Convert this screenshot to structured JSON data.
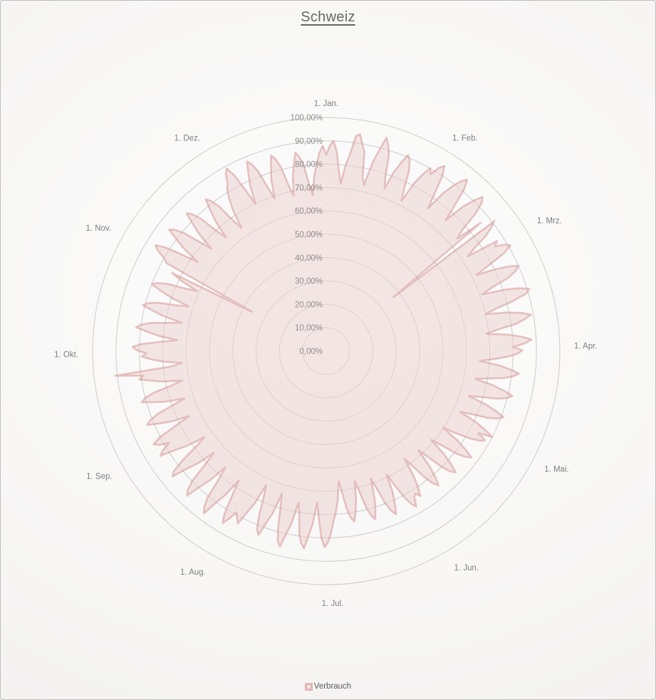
{
  "window": {
    "title": "Schweiz"
  },
  "legend": {
    "label": "Verbrauch"
  },
  "chart_data": {
    "type": "radar",
    "variant": "filled-radar-daily",
    "title": "Schweiz",
    "days_in_year": 365,
    "radial_axis": {
      "min": 0,
      "max": 100,
      "step": 10,
      "unit": "%",
      "tick_labels": [
        "0,00%",
        "10,00%",
        "20,00%",
        "30,00%",
        "40,00%",
        "50,00%",
        "60,00%",
        "70,00%",
        "80,00%",
        "90,00%",
        "100,00%"
      ]
    },
    "categories": [
      {
        "label": "1. Jan.",
        "start_day": 0
      },
      {
        "label": "1. Feb.",
        "start_day": 31
      },
      {
        "label": "1. Mrz.",
        "start_day": 59
      },
      {
        "label": "1. Apr.",
        "start_day": 90
      },
      {
        "label": "1. Mai.",
        "start_day": 120
      },
      {
        "label": "1. Jun.",
        "start_day": 151
      },
      {
        "label": "1. Jul.",
        "start_day": 181
      },
      {
        "label": "1. Aug.",
        "start_day": 212
      },
      {
        "label": "1. Sep.",
        "start_day": 243
      },
      {
        "label": "1. Okt.",
        "start_day": 273
      },
      {
        "label": "1. Nov.",
        "start_day": 304
      },
      {
        "label": "1. Dez.",
        "start_day": 334
      }
    ],
    "legend": {
      "position": "bottom",
      "entries": [
        "Verbrauch"
      ]
    },
    "series": [
      {
        "name": "Verbrauch",
        "values": [
          84,
          88,
          90,
          86,
          78,
          72,
          80,
          85,
          93,
          94,
          90,
          87,
          76,
          73,
          83,
          89,
          95,
          92,
          88,
          79,
          74,
          82,
          87,
          91,
          89,
          85,
          77,
          72,
          81,
          86,
          90,
          88,
          92,
          94,
          90,
          82,
          75,
          84,
          89,
          93,
          95,
          91,
          83,
          76,
          85,
          90,
          94,
          92,
          87,
          78,
          74,
          86,
          37,
          91,
          88,
          84,
          77,
          73,
          87,
          85,
          89,
          91,
          87,
          79,
          72,
          80,
          86,
          90,
          88,
          84,
          76,
          71,
          81,
          87,
          91,
          89,
          83,
          75,
          70,
          79,
          85,
          89,
          86,
          82,
          74,
          69,
          78,
          84,
          88,
          85,
          80,
          84,
          82,
          78,
          72,
          66,
          74,
          79,
          83,
          81,
          77,
          70,
          65,
          73,
          78,
          82,
          80,
          76,
          69,
          64,
          72,
          77,
          81,
          79,
          75,
          68,
          63,
          71,
          76,
          80,
          74,
          78,
          76,
          72,
          66,
          60,
          68,
          73,
          77,
          75,
          71,
          64,
          59,
          67,
          72,
          76,
          74,
          70,
          63,
          58,
          66,
          71,
          75,
          73,
          69,
          62,
          57,
          65,
          70,
          74,
          72,
          73,
          77,
          75,
          71,
          65,
          59,
          67,
          72,
          76,
          74,
          70,
          63,
          58,
          66,
          71,
          75,
          73,
          69,
          62,
          57,
          65,
          70,
          74,
          72,
          68,
          61,
          56,
          64,
          69,
          73,
          78,
          82,
          84,
          80,
          72,
          65,
          74,
          79,
          85,
          83,
          79,
          71,
          66,
          75,
          80,
          86,
          84,
          78,
          70,
          64,
          73,
          78,
          84,
          82,
          76,
          68,
          63,
          72,
          77,
          83,
          81,
          79,
          83,
          86,
          82,
          74,
          67,
          75,
          80,
          87,
          85,
          81,
          72,
          66,
          74,
          79,
          86,
          84,
          80,
          71,
          65,
          73,
          78,
          85,
          83,
          77,
          69,
          64,
          72,
          77,
          84,
          82,
          78,
          82,
          84,
          80,
          72,
          65,
          73,
          78,
          83,
          81,
          77,
          70,
          64,
          72,
          77,
          82,
          80,
          76,
          68,
          63,
          71,
          76,
          81,
          79,
          91,
          67,
          62,
          70,
          75,
          79,
          77,
          81,
          83,
          79,
          71,
          64,
          72,
          77,
          82,
          80,
          76,
          69,
          63,
          71,
          76,
          81,
          79,
          75,
          67,
          62,
          70,
          75,
          80,
          78,
          74,
          66,
          61,
          69,
          74,
          36,
          78,
          80,
          84,
          86,
          82,
          74,
          67,
          75,
          80,
          85,
          83,
          79,
          72,
          66,
          74,
          79,
          84,
          82,
          78,
          70,
          65,
          73,
          78,
          83,
          81,
          77,
          69,
          64,
          72,
          77,
          81,
          83,
          87,
          89,
          85,
          77,
          70,
          78,
          83,
          88,
          86,
          82,
          75,
          69,
          77,
          82,
          87,
          85,
          81,
          73,
          68,
          76,
          81,
          86,
          84,
          80,
          72,
          67,
          75,
          80,
          85,
          88
        ]
      }
    ],
    "colors": {
      "series_line": "#cc8886",
      "series_fill": "#edd2d1",
      "grid_line": "#c9c5c3",
      "tick_text": "#8f8c8a",
      "category_text": "#7f7f7f",
      "title_text": "#666666",
      "legend_text": "#595959",
      "border": "#bdbdbd"
    }
  }
}
